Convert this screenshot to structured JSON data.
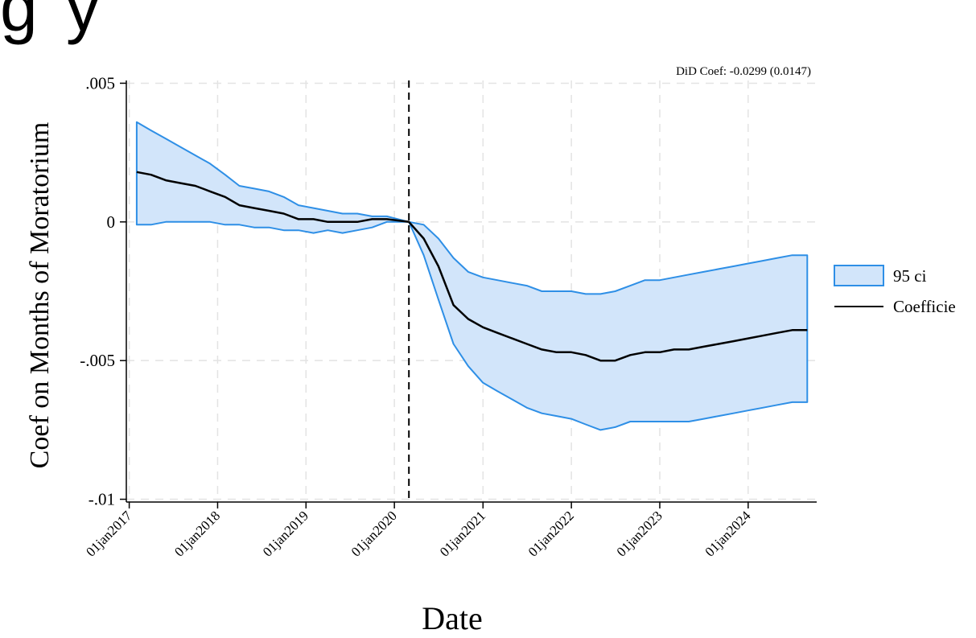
{
  "chart_data": {
    "type": "area",
    "cropped_heading": "g      y",
    "note": "DiD Coef: -0.0299 (0.0147)",
    "xlabel": "Date",
    "ylabel": "Coef on Months of Moratorium",
    "ylim": [
      -0.0101,
      0.0051
    ],
    "xlim": [
      "2016-12-20",
      "2024-10-10"
    ],
    "yticks": [
      0.005,
      0,
      -0.005,
      -0.01
    ],
    "ytick_labels": [
      ".005",
      "0",
      "-.005",
      "-.01"
    ],
    "xticks": [
      "2017-01-01",
      "2018-01-01",
      "2019-01-01",
      "2020-01-01",
      "2021-01-01",
      "2022-01-01",
      "2023-01-01",
      "2024-01-01"
    ],
    "xtick_labels": [
      "01jan2017",
      "01jan2018",
      "01jan2019",
      "01jan2020",
      "01jan2021",
      "01jan2022",
      "01jan2023",
      "01jan2024"
    ],
    "grid": true,
    "legend_position": "right",
    "event_line": {
      "x": "2020-03-01",
      "style": "dashed"
    },
    "colors": {
      "ci_fill": "#d2e5fa",
      "ci_line": "#2e8fe6",
      "coef_line": "#000000",
      "grid": "#e3e3e3"
    },
    "series": [
      {
        "name": "Coefficie",
        "role": "line",
        "x": [
          "2017-02-01",
          "2017-04-01",
          "2017-06-01",
          "2017-08-01",
          "2017-10-01",
          "2017-12-01",
          "2018-02-01",
          "2018-04-01",
          "2018-06-01",
          "2018-08-01",
          "2018-10-01",
          "2018-12-01",
          "2019-02-01",
          "2019-04-01",
          "2019-06-01",
          "2019-08-01",
          "2019-10-01",
          "2019-12-01",
          "2020-03-01",
          "2020-05-01",
          "2020-07-01",
          "2020-09-01",
          "2020-11-01",
          "2021-01-01",
          "2021-03-01",
          "2021-05-01",
          "2021-07-01",
          "2021-09-01",
          "2021-11-01",
          "2022-01-01",
          "2022-03-01",
          "2022-05-01",
          "2022-07-01",
          "2022-09-01",
          "2022-11-01",
          "2023-01-01",
          "2023-03-01",
          "2023-05-01",
          "2023-07-01",
          "2023-09-01",
          "2023-11-01",
          "2024-01-01",
          "2024-03-01",
          "2024-05-01",
          "2024-07-01",
          "2024-09-01"
        ],
        "values": [
          0.0018,
          0.0017,
          0.0015,
          0.0014,
          0.0013,
          0.0011,
          0.0009,
          0.0006,
          0.0005,
          0.0004,
          0.0003,
          0.0001,
          0.0001,
          0.0,
          0.0,
          0.0,
          0.0001,
          0.0001,
          0.0,
          -0.0006,
          -0.0016,
          -0.003,
          -0.0035,
          -0.0038,
          -0.004,
          -0.0042,
          -0.0044,
          -0.0046,
          -0.0047,
          -0.0047,
          -0.0048,
          -0.005,
          -0.005,
          -0.0048,
          -0.0047,
          -0.0047,
          -0.0046,
          -0.0046,
          -0.0045,
          -0.0044,
          -0.0043,
          -0.0042,
          -0.0041,
          -0.004,
          -0.0039,
          -0.0039
        ]
      },
      {
        "name": "95 ci",
        "role": "band",
        "x": [
          "2017-02-01",
          "2017-04-01",
          "2017-06-01",
          "2017-08-01",
          "2017-10-01",
          "2017-12-01",
          "2018-02-01",
          "2018-04-01",
          "2018-06-01",
          "2018-08-01",
          "2018-10-01",
          "2018-12-01",
          "2019-02-01",
          "2019-04-01",
          "2019-06-01",
          "2019-08-01",
          "2019-10-01",
          "2019-12-01",
          "2020-03-01",
          "2020-05-01",
          "2020-07-01",
          "2020-09-01",
          "2020-11-01",
          "2021-01-01",
          "2021-03-01",
          "2021-05-01",
          "2021-07-01",
          "2021-09-01",
          "2021-11-01",
          "2022-01-01",
          "2022-03-01",
          "2022-05-01",
          "2022-07-01",
          "2022-09-01",
          "2022-11-01",
          "2023-01-01",
          "2023-03-01",
          "2023-05-01",
          "2023-07-01",
          "2023-09-01",
          "2023-11-01",
          "2024-01-01",
          "2024-03-01",
          "2024-05-01",
          "2024-07-01",
          "2024-09-01"
        ],
        "upper": [
          0.0036,
          0.0033,
          0.003,
          0.0027,
          0.0024,
          0.0021,
          0.0017,
          0.0013,
          0.0012,
          0.0011,
          0.0009,
          0.0006,
          0.0005,
          0.0004,
          0.0003,
          0.0003,
          0.0002,
          0.0002,
          0.0,
          -0.0001,
          -0.0006,
          -0.0013,
          -0.0018,
          -0.002,
          -0.0021,
          -0.0022,
          -0.0023,
          -0.0025,
          -0.0025,
          -0.0025,
          -0.0026,
          -0.0026,
          -0.0025,
          -0.0023,
          -0.0021,
          -0.0021,
          -0.002,
          -0.0019,
          -0.0018,
          -0.0017,
          -0.0016,
          -0.0015,
          -0.0014,
          -0.0013,
          -0.0012,
          -0.0012
        ],
        "lower": [
          -0.0001,
          -0.0001,
          0.0,
          0.0,
          0.0,
          0.0,
          -0.0001,
          -0.0001,
          -0.0002,
          -0.0002,
          -0.0003,
          -0.0003,
          -0.0004,
          -0.0003,
          -0.0004,
          -0.0003,
          -0.0002,
          0.0,
          0.0,
          -0.0012,
          -0.0028,
          -0.0044,
          -0.0052,
          -0.0058,
          -0.0061,
          -0.0064,
          -0.0067,
          -0.0069,
          -0.007,
          -0.0071,
          -0.0073,
          -0.0075,
          -0.0074,
          -0.0072,
          -0.0072,
          -0.0072,
          -0.0072,
          -0.0072,
          -0.0071,
          -0.007,
          -0.0069,
          -0.0068,
          -0.0067,
          -0.0066,
          -0.0065,
          -0.0065
        ]
      }
    ]
  }
}
